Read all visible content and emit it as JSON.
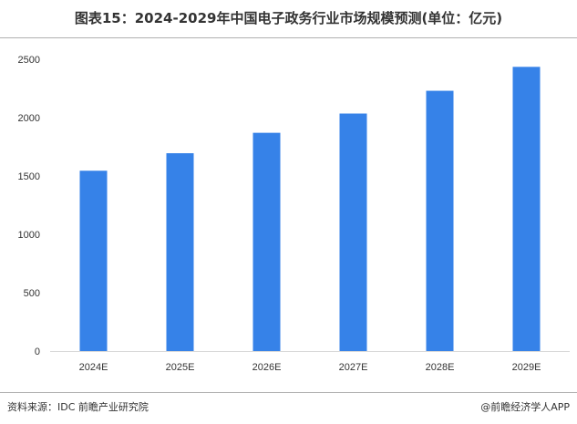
{
  "title": "图表15：2024-2029年中国电子政务行业市场规模预测(单位：亿元)",
  "source": "资料来源：IDC 前瞻产业研究院",
  "credit": "@前瞻经济学人APP",
  "colors": {
    "bar": "#3682e8",
    "axis": "#d9d9d9",
    "divider": "#b0b0b0"
  },
  "chart_data": {
    "type": "bar",
    "categories": [
      "2024E",
      "2025E",
      "2026E",
      "2027E",
      "2028E",
      "2029E"
    ],
    "values": [
      1545,
      1695,
      1870,
      2035,
      2230,
      2435
    ],
    "ylim": [
      0,
      2500
    ],
    "yticks": [
      0,
      500,
      1000,
      1500,
      2000,
      2500
    ],
    "unit": "亿元",
    "grid": false,
    "legend": "none"
  }
}
